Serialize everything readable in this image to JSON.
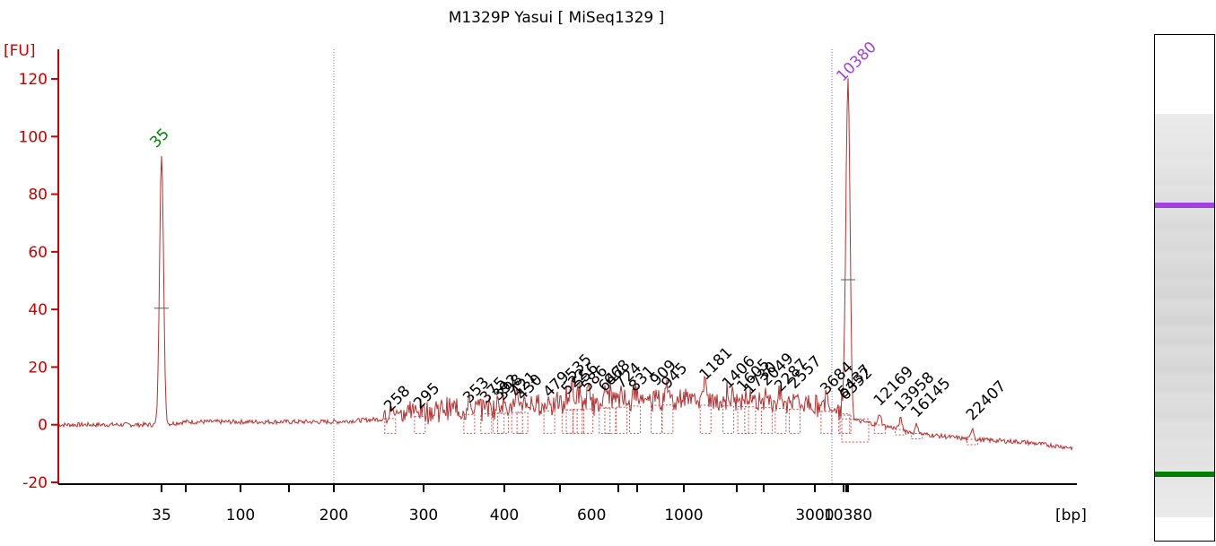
{
  "colors": {
    "axis": "#cc0000",
    "trace": "#b83030",
    "dash": "#d05050",
    "marker_lower": "#008000",
    "marker_upper": "#a040e0",
    "text": "#000000",
    "divider": "#777777"
  },
  "chart_data": {
    "type": "line",
    "title": "M1329P Yasui  [ MiSeq1329 ]",
    "ylabel": "[FU]",
    "xlabel": "[bp]",
    "ylim": [
      -20,
      120
    ],
    "yticks": [
      -20,
      0,
      20,
      40,
      60,
      80,
      100,
      120
    ],
    "xticks": [
      "35",
      "100",
      "200",
      "300",
      "400",
      "600",
      "1000",
      "3000",
      "10380"
    ],
    "grid": false,
    "ladder_bp": [
      35,
      50,
      100,
      150,
      200,
      300,
      400,
      500,
      700,
      850,
      1000,
      1500,
      2000,
      3000,
      5000,
      7000,
      10380
    ],
    "markers": [
      {
        "label": "35",
        "bp": 35,
        "fu": 94,
        "color_key": "marker_lower"
      },
      {
        "label": "10380",
        "bp": 10380,
        "fu": 117,
        "color_key": "marker_upper"
      }
    ],
    "peaks": [
      {
        "label": "258",
        "bp": 258,
        "fu": 3
      },
      {
        "label": "295",
        "bp": 295,
        "fu": 4
      },
      {
        "label": "353",
        "bp": 353,
        "fu": 6
      },
      {
        "label": "375",
        "bp": 375,
        "fu": 6
      },
      {
        "label": "392",
        "bp": 392,
        "fu": 7
      },
      {
        "label": "398",
        "bp": 398,
        "fu": 7
      },
      {
        "label": "421",
        "bp": 421,
        "fu": 8
      },
      {
        "label": "430",
        "bp": 430,
        "fu": 7
      },
      {
        "label": "479",
        "bp": 479,
        "fu": 8
      },
      {
        "label": "522",
        "bp": 522,
        "fu": 9
      },
      {
        "label": "535",
        "bp": 535,
        "fu": 14
      },
      {
        "label": "556",
        "bp": 556,
        "fu": 11
      },
      {
        "label": "586",
        "bp": 586,
        "fu": 10
      },
      {
        "label": "647",
        "bp": 647,
        "fu": 10
      },
      {
        "label": "668",
        "bp": 668,
        "fu": 12
      },
      {
        "label": "724",
        "bp": 724,
        "fu": 11
      },
      {
        "label": "831",
        "bp": 831,
        "fu": 10
      },
      {
        "label": "909",
        "bp": 909,
        "fu": 12
      },
      {
        "label": "945",
        "bp": 945,
        "fu": 11
      },
      {
        "label": "1181",
        "bp": 1181,
        "fu": 14
      },
      {
        "label": "1406",
        "bp": 1406,
        "fu": 11
      },
      {
        "label": "1605",
        "bp": 1605,
        "fu": 10
      },
      {
        "label": "1730",
        "bp": 1730,
        "fu": 9
      },
      {
        "label": "2049",
        "bp": 2049,
        "fu": 12
      },
      {
        "label": "2287",
        "bp": 2287,
        "fu": 10
      },
      {
        "label": "2557",
        "bp": 2557,
        "fu": 11
      },
      {
        "label": "3684",
        "bp": 3684,
        "fu": 9
      },
      {
        "label": "5437",
        "bp": 5437,
        "fu": 8
      },
      {
        "label": "6352",
        "bp": 6352,
        "fu": 7
      },
      {
        "label": "12169",
        "bp": 12169,
        "fu": 5
      },
      {
        "label": "13958",
        "bp": 13958,
        "fu": 3
      },
      {
        "label": "16145",
        "bp": 16145,
        "fu": 1
      },
      {
        "label": "22407",
        "bp": 22407,
        "fu": 0
      }
    ],
    "region_start_bp": 200,
    "region_end_bp": 8500,
    "baseline_samples": [
      {
        "bp": 25,
        "fu": 0
      },
      {
        "bp": 35,
        "fu": 0
      },
      {
        "bp": 50,
        "fu": 1
      },
      {
        "bp": 100,
        "fu": 1
      },
      {
        "bp": 150,
        "fu": 1
      },
      {
        "bp": 200,
        "fu": 1
      },
      {
        "bp": 250,
        "fu": 2
      },
      {
        "bp": 300,
        "fu": 3
      },
      {
        "bp": 400,
        "fu": 4
      },
      {
        "bp": 500,
        "fu": 5
      },
      {
        "bp": 700,
        "fu": 6
      },
      {
        "bp": 1000,
        "fu": 7
      },
      {
        "bp": 2000,
        "fu": 6
      },
      {
        "bp": 3000,
        "fu": 5
      },
      {
        "bp": 5000,
        "fu": 4
      },
      {
        "bp": 7000,
        "fu": 3
      },
      {
        "bp": 10380,
        "fu": 2
      },
      {
        "bp": 13000,
        "fu": -1
      },
      {
        "bp": 16000,
        "fu": -3
      },
      {
        "bp": 22000,
        "fu": -5
      },
      {
        "bp": 30000,
        "fu": -6
      },
      {
        "bp": 40000,
        "fu": -8
      }
    ]
  },
  "gel_lane": {
    "bands": [
      {
        "name": "upper-marker",
        "position": 0.335,
        "color_key": "marker_upper"
      },
      {
        "name": "lower-marker",
        "position": 0.865,
        "color_key": "marker_lower"
      }
    ]
  }
}
